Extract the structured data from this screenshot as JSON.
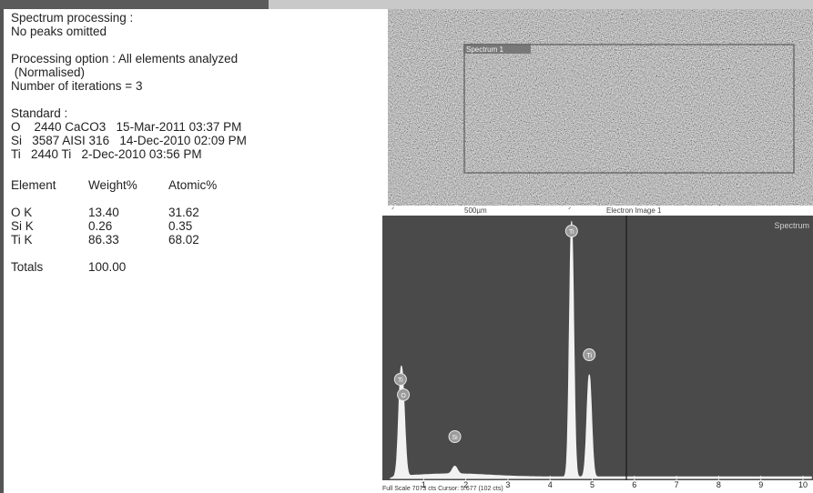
{
  "report": {
    "spectrum_processing_heading": "Spectrum processing :",
    "no_peaks_line": "No peaks omitted",
    "processing_option_line": "Processing option : All elements analyzed",
    "normalised_line": " (Normalised)",
    "iterations_line": "Number of iterations = 3",
    "standard_heading": "Standard :",
    "standards": [
      "O    2440 CaCO3   15-Mar-2011 03:37 PM",
      "Si   3587 AISI 316   14-Dec-2010 02:09 PM",
      "Ti   2440 Ti   2-Dec-2010 03:56 PM"
    ],
    "table_headers": [
      "Element",
      "Weight%",
      "Atomic%"
    ],
    "table_rows": [
      {
        "element": "O K",
        "weight": "13.40",
        "atomic": "31.62"
      },
      {
        "element": "Si K",
        "weight": "0.26",
        "atomic": "0.35"
      },
      {
        "element": "Ti K",
        "weight": "86.33",
        "atomic": "68.02"
      }
    ],
    "totals_label": "Totals",
    "totals_value": "100.00"
  },
  "electron_image": {
    "region_label": "Spectrum 1",
    "scale_label": "500µm",
    "caption": "Electron Image 1"
  },
  "spectrum": {
    "title": "Spectrum",
    "x_ticks": [
      "1",
      "2",
      "3",
      "4",
      "5",
      "6",
      "7",
      "8",
      "9",
      "10"
    ],
    "footer": "Full Scale 7073 cts Cursor: 5.677  (102 cts)",
    "peak_markers": [
      {
        "label": "Ti",
        "x": 0.45
      },
      {
        "label": "O",
        "x": 0.52
      },
      {
        "label": "Si",
        "x": 1.74
      },
      {
        "label": "Ti",
        "x": 4.51
      },
      {
        "label": "Ti",
        "x": 4.93
      }
    ]
  }
}
